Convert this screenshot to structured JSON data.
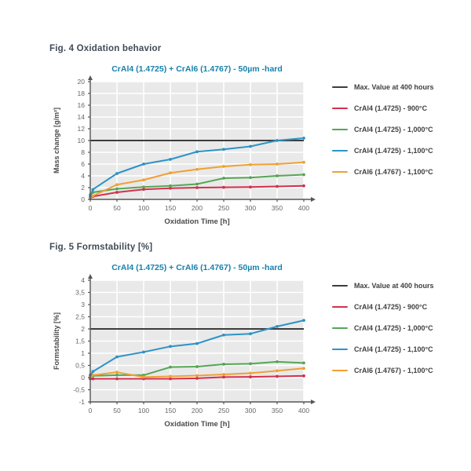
{
  "figures": [
    {
      "heading": "Fig. 4 Oxidation behavior",
      "legend": [
        {
          "label": "Max. Value at 400 hours",
          "color": "#3d3d3d"
        },
        {
          "label": "CrAl4 (1.4725) - 900°C",
          "color": "#d2304e"
        },
        {
          "label": "CrAl4 (1.4725) - 1,000°C",
          "color": "#55a654"
        },
        {
          "label": "CrAl4 (1.4725) - 1,100°C",
          "color": "#2d93c6"
        },
        {
          "label": "CrAl6 (1.4767) - 1,100°C",
          "color": "#f0a033"
        }
      ]
    },
    {
      "heading": "Fig. 5 Formstability [%]",
      "legend": [
        {
          "label": "Max. Value at 400 hours",
          "color": "#3d3d3d"
        },
        {
          "label": "CrAl4 (1.4725) - 900°C",
          "color": "#d2304e"
        },
        {
          "label": "CrAl4 (1.4725) - 1,000°C",
          "color": "#55a654"
        },
        {
          "label": "CrAl4 (1.4725) - 1,100°C",
          "color": "#2d93c6"
        },
        {
          "label": "CrAl6 (1.4767) - 1,100°C",
          "color": "#f0a033"
        }
      ]
    }
  ],
  "colors": {
    "plot_bg": "#e9e9e9",
    "grid": "#ffffff",
    "axis": "#555555",
    "tick_text": "#666666",
    "axis_label": "#4a4a4a",
    "max_line": "#3d3d3d",
    "title_blue": "#1880ab"
  },
  "chart_data": [
    {
      "type": "line",
      "title": "CrAl4 (1.4725) + CrAl6 (1.4767) - 50µm -hard",
      "xlabel": "Oxidation Time [h]",
      "ylabel": "Mass change [g/m²]",
      "xlim": [
        0,
        400
      ],
      "ylim": [
        0,
        20
      ],
      "xticks": [
        0,
        50,
        100,
        150,
        200,
        250,
        300,
        350,
        400
      ],
      "yticks": [
        0,
        2,
        4,
        6,
        8,
        10,
        12,
        14,
        16,
        18,
        20
      ],
      "ytick_labels": [
        "0",
        "2",
        "4",
        "6",
        "8",
        "10",
        "12",
        "14",
        "16",
        "18",
        "20"
      ],
      "grid": true,
      "legend_position": "right",
      "max_value_line": {
        "label": "Max. Value at 400 hours",
        "y": 10
      },
      "x": [
        0,
        5,
        50,
        100,
        150,
        200,
        250,
        300,
        350,
        400
      ],
      "series": [
        {
          "name": "CrAl4 (1.4725) - 900°C",
          "color": "#d2304e",
          "values": [
            0.2,
            0.5,
            1.2,
            1.7,
            1.9,
            2.0,
            2.05,
            2.1,
            2.2,
            2.3
          ]
        },
        {
          "name": "CrAl4 (1.4725) - 1,000°C",
          "color": "#55a654",
          "values": [
            0.8,
            1.2,
            1.8,
            2.1,
            2.3,
            2.6,
            3.6,
            3.7,
            4.0,
            4.2
          ]
        },
        {
          "name": "CrAl6 (1.4767) - 1,100°C",
          "color": "#f0a033",
          "values": [
            0.3,
            0.6,
            2.5,
            3.3,
            4.5,
            5.1,
            5.6,
            5.9,
            6.0,
            6.3
          ]
        },
        {
          "name": "CrAl4 (1.4725) - 1,100°C",
          "color": "#2d93c6",
          "values": [
            0.5,
            1.7,
            4.4,
            6.0,
            6.8,
            8.1,
            8.5,
            9.0,
            10.0,
            10.4
          ]
        }
      ]
    },
    {
      "type": "line",
      "title": "CrAl4 (1.4725) + CrAl6 (1.4767) - 50µm -hard",
      "xlabel": "Oxidation Time [h]",
      "ylabel": "Formstability [%]",
      "xlim": [
        0,
        400
      ],
      "ylim": [
        -1,
        4
      ],
      "xticks": [
        0,
        50,
        100,
        150,
        200,
        250,
        300,
        350,
        400
      ],
      "yticks": [
        -1,
        -0.5,
        0,
        0.5,
        1,
        1.5,
        2,
        2.5,
        3,
        3.5,
        4
      ],
      "ytick_labels": [
        "-1",
        "-0,5",
        "0",
        "0,5",
        "1",
        "1,5",
        "2",
        "2,5",
        "3",
        "3,5",
        "4"
      ],
      "grid": true,
      "legend_position": "right",
      "max_value_line": {
        "label": "Max. Value at 400 hours",
        "y": 2
      },
      "x": [
        0,
        5,
        50,
        100,
        150,
        200,
        250,
        300,
        350,
        400
      ],
      "series": [
        {
          "name": "CrAl4 (1.4725) - 900°C",
          "color": "#d2304e",
          "values": [
            -0.05,
            -0.05,
            -0.05,
            -0.05,
            -0.05,
            -0.03,
            0.02,
            0.03,
            0.05,
            0.07
          ]
        },
        {
          "name": "CrAl4 (1.4725) - 1,000°C",
          "color": "#55a654",
          "values": [
            0.05,
            0.07,
            0.1,
            0.1,
            0.43,
            0.45,
            0.55,
            0.57,
            0.65,
            0.6
          ]
        },
        {
          "name": "CrAl6 (1.4767) - 1,100°C",
          "color": "#f0a033",
          "values": [
            0.05,
            0.1,
            0.22,
            0.02,
            0.05,
            0.08,
            0.13,
            0.18,
            0.28,
            0.38
          ]
        },
        {
          "name": "CrAl4 (1.4725) - 1,100°C",
          "color": "#2d93c6",
          "values": [
            0.1,
            0.25,
            0.85,
            1.05,
            1.28,
            1.4,
            1.75,
            1.8,
            2.1,
            2.35
          ]
        }
      ]
    }
  ]
}
